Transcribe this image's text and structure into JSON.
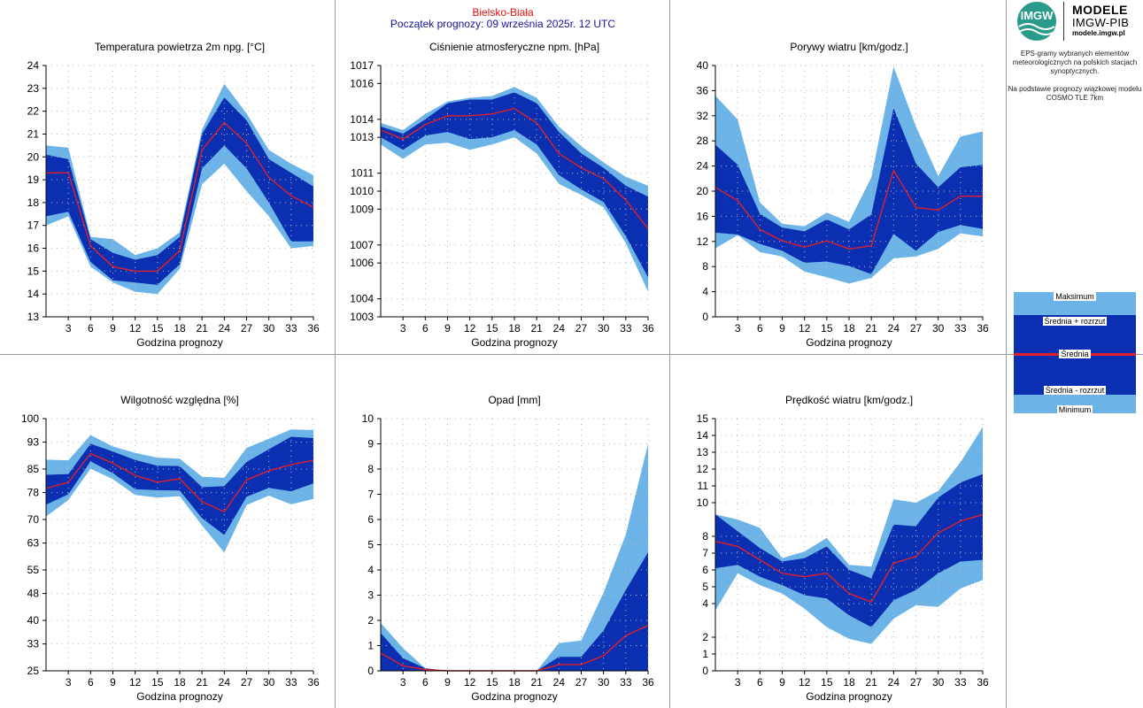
{
  "header": {
    "station": "Bielsko-Biała",
    "start": "Początek prognozy: 09 września 2025r. 12 UTC"
  },
  "logo": {
    "initials": "IMGW",
    "line1": "MODELE",
    "line2": "IMGW-PIB",
    "line3": "modele.imgw.pl"
  },
  "info": {
    "p1": "EPS-gramy wybranych elementów meteorologicznych na polskich stacjach synoptycznych.",
    "p2": "Na podstawie prognozy wiązkowej modelu COSMO TLE 7km"
  },
  "legend": {
    "max": "Maksimum",
    "mean_plus": "Średnia + rozrzut",
    "mean": "Średnia",
    "mean_minus": "Średnia - rozrzut",
    "min": "Minimum"
  },
  "colors": {
    "light": "#6cb4e8",
    "dark": "#0a2fb0",
    "mean": "#e0202a",
    "grid": "#b8b8b8"
  },
  "chart_data": [
    {
      "type": "area",
      "title": "Temperatura powietrza 2m npg. [°C]",
      "xlabel": "Godzina prognozy",
      "ylabel": "",
      "x": [
        0,
        3,
        6,
        9,
        12,
        15,
        18,
        21,
        24,
        27,
        30,
        33,
        36
      ],
      "xticks": [
        3,
        6,
        9,
        12,
        15,
        18,
        21,
        24,
        27,
        30,
        33,
        36
      ],
      "yticks": [
        "13",
        "14",
        "15",
        "16",
        "17",
        "18",
        "19",
        "20",
        "21",
        "22",
        "23",
        "24"
      ],
      "ylim": [
        13,
        24
      ],
      "series": [
        {
          "name": "Maksimum",
          "values": [
            20.5,
            20.4,
            16.5,
            16.4,
            15.7,
            16.0,
            16.7,
            21.2,
            23.2,
            21.9,
            20.3,
            19.7,
            19.2
          ]
        },
        {
          "name": "Średnia + rozrzut",
          "values": [
            20.1,
            19.9,
            16.4,
            15.8,
            15.5,
            15.7,
            16.5,
            21.0,
            22.6,
            21.6,
            19.9,
            19.3,
            18.7
          ]
        },
        {
          "name": "Średnia",
          "values": [
            19.3,
            19.3,
            16.1,
            15.2,
            15.0,
            15.0,
            15.9,
            20.3,
            21.5,
            20.6,
            19.1,
            18.3,
            17.8
          ]
        },
        {
          "name": "Średnia - rozrzut",
          "values": [
            17.4,
            17.6,
            15.4,
            14.6,
            14.5,
            14.4,
            15.3,
            19.5,
            20.5,
            19.5,
            18.0,
            16.3,
            16.3
          ]
        },
        {
          "name": "Minimum",
          "values": [
            17.0,
            17.4,
            15.2,
            14.5,
            14.1,
            14.0,
            15.1,
            18.8,
            19.7,
            18.5,
            17.4,
            16.0,
            16.1
          ]
        }
      ],
      "grid": true
    },
    {
      "type": "area",
      "title": "Ciśnienie atmosferyczne npm. [hPa]",
      "xlabel": "Godzina prognozy",
      "ylabel": "",
      "x": [
        0,
        3,
        6,
        9,
        12,
        15,
        18,
        21,
        24,
        27,
        30,
        33,
        36
      ],
      "xticks": [
        3,
        6,
        9,
        12,
        15,
        18,
        21,
        24,
        27,
        30,
        33,
        36
      ],
      "yticks": [
        "1003",
        "1004",
        "1006",
        "1007",
        "1009",
        "1010",
        "1011",
        "1013",
        "1014",
        "1016",
        "1017"
      ],
      "ylim": [
        1003,
        1017
      ],
      "series": [
        {
          "name": "Maksimum",
          "values": [
            1013.8,
            1013.4,
            1014.3,
            1015.0,
            1015.2,
            1015.3,
            1015.8,
            1015.2,
            1013.6,
            1012.5,
            1011.6,
            1010.8,
            1010.3
          ]
        },
        {
          "name": "Średnia + rozrzut",
          "values": [
            1013.6,
            1013.2,
            1014.0,
            1014.9,
            1015.1,
            1015.1,
            1015.5,
            1014.9,
            1013.3,
            1012.1,
            1011.3,
            1010.3,
            1009.7
          ]
        },
        {
          "name": "Średnia",
          "values": [
            1013.4,
            1012.9,
            1013.7,
            1014.2,
            1014.2,
            1014.3,
            1014.6,
            1013.8,
            1012.1,
            1011.3,
            1010.7,
            1009.5,
            1007.9
          ]
        },
        {
          "name": "Średnia - rozrzut",
          "values": [
            1013.0,
            1012.3,
            1013.1,
            1013.3,
            1012.9,
            1013.0,
            1013.4,
            1012.6,
            1010.9,
            1010.1,
            1009.4,
            1007.5,
            1005.2
          ]
        },
        {
          "name": "Minimum",
          "values": [
            1012.6,
            1011.8,
            1012.6,
            1012.7,
            1012.3,
            1012.6,
            1013.0,
            1012.1,
            1010.4,
            1009.8,
            1009.1,
            1007.1,
            1004.4
          ]
        }
      ],
      "grid": true
    },
    {
      "type": "area",
      "title": "Porywy wiatru [km/godz.]",
      "xlabel": "Godzina prognozy",
      "ylabel": "",
      "x": [
        0,
        3,
        6,
        9,
        12,
        15,
        18,
        21,
        24,
        27,
        30,
        33,
        36
      ],
      "xticks": [
        3,
        6,
        9,
        12,
        15,
        18,
        21,
        24,
        27,
        30,
        33,
        36
      ],
      "yticks": [
        "0",
        "4",
        "8",
        "12",
        "16",
        "20",
        "24",
        "28",
        "32",
        "36",
        "40"
      ],
      "ylim": [
        0,
        40
      ],
      "series": [
        {
          "name": "Maksimum",
          "values": [
            35.2,
            31.4,
            18.2,
            14.8,
            14.4,
            16.6,
            15.1,
            22.2,
            39.8,
            30.3,
            22.4,
            28.7,
            29.5
          ]
        },
        {
          "name": "Średnia + rozrzut",
          "values": [
            27.4,
            24.2,
            16.4,
            14.2,
            13.6,
            15.5,
            13.9,
            16.3,
            33.2,
            24.4,
            20.6,
            23.8,
            24.2
          ]
        },
        {
          "name": "Średnia",
          "values": [
            20.6,
            18.5,
            13.9,
            12.1,
            11.1,
            12.1,
            10.8,
            11.3,
            23.3,
            17.4,
            17.0,
            19.2,
            19.2
          ]
        },
        {
          "name": "Średnia - rozrzut",
          "values": [
            13.4,
            13.1,
            11.6,
            10.5,
            8.6,
            8.8,
            8.1,
            6.8,
            13.2,
            10.5,
            13.5,
            14.6,
            14.0
          ]
        },
        {
          "name": "Minimum",
          "values": [
            10.9,
            13.0,
            10.3,
            9.6,
            7.2,
            6.3,
            5.3,
            6.2,
            9.3,
            9.6,
            10.8,
            13.3,
            12.8
          ]
        }
      ],
      "grid": true
    },
    {
      "type": "area",
      "title": "Wilgotność względna [%]",
      "xlabel": "Godzina prognozy",
      "ylabel": "",
      "x": [
        0,
        3,
        6,
        9,
        12,
        15,
        18,
        21,
        24,
        27,
        30,
        33,
        36
      ],
      "xticks": [
        3,
        6,
        9,
        12,
        15,
        18,
        21,
        24,
        27,
        30,
        33,
        36
      ],
      "yticks": [
        "25",
        "33",
        "40",
        "48",
        "55",
        "63",
        "70",
        "78",
        "85",
        "93",
        "100"
      ],
      "ylim": [
        25,
        100
      ],
      "series": [
        {
          "name": "Maksimum",
          "values": [
            87.8,
            87.6,
            95.1,
            91.7,
            89.8,
            88.4,
            88.1,
            82.7,
            82.4,
            91.3,
            94.0,
            96.8,
            96.6
          ]
        },
        {
          "name": "Średnia + rozrzut",
          "values": [
            83.3,
            83.5,
            92.5,
            90.2,
            87.7,
            86.0,
            85.9,
            79.6,
            79.9,
            87.1,
            90.9,
            94.6,
            94.2
          ]
        },
        {
          "name": "Średnia",
          "values": [
            79.2,
            81.1,
            89.6,
            86.7,
            83.1,
            81.1,
            82.1,
            75.3,
            72.3,
            81.8,
            84.5,
            86.3,
            87.6
          ]
        },
        {
          "name": "Średnia - rozrzut",
          "values": [
            74.4,
            77.5,
            87.3,
            83.8,
            79.0,
            78.7,
            78.6,
            70.4,
            65.4,
            76.8,
            79.4,
            78.4,
            80.7
          ]
        },
        {
          "name": "Minimum",
          "values": [
            70.9,
            75.8,
            85.1,
            82.0,
            77.3,
            76.5,
            76.9,
            68.2,
            60.2,
            74.3,
            77.1,
            74.5,
            76.1
          ]
        }
      ],
      "grid": true
    },
    {
      "type": "area",
      "title": "Opad [mm]",
      "xlabel": "Godzina prognozy",
      "ylabel": "",
      "x": [
        0,
        3,
        6,
        9,
        12,
        15,
        18,
        21,
        24,
        27,
        30,
        33,
        36
      ],
      "xticks": [
        3,
        6,
        9,
        12,
        15,
        18,
        21,
        24,
        27,
        30,
        33,
        36
      ],
      "yticks": [
        "0",
        "1",
        "2",
        "3",
        "4",
        "5",
        "6",
        "7",
        "8",
        "9",
        "10"
      ],
      "ylim": [
        0,
        10
      ],
      "series": [
        {
          "name": "Maksimum",
          "values": [
            1.9,
            0.9,
            0.1,
            0,
            0,
            0,
            0,
            0,
            1.1,
            1.2,
            3.1,
            5.4,
            9.0
          ]
        },
        {
          "name": "Średnia + rozrzut",
          "values": [
            1.5,
            0.5,
            0.1,
            0,
            0,
            0,
            0,
            0,
            0.55,
            0.55,
            1.6,
            3.2,
            4.7
          ]
        },
        {
          "name": "Średnia",
          "values": [
            0.7,
            0.2,
            0.05,
            0,
            0,
            0,
            0,
            0,
            0.25,
            0.25,
            0.6,
            1.4,
            1.8
          ]
        },
        {
          "name": "Średnia - rozrzut",
          "values": [
            0,
            0,
            0,
            0,
            0,
            0,
            0,
            0,
            0,
            0,
            0,
            0,
            0
          ]
        },
        {
          "name": "Minimum",
          "values": [
            0,
            0,
            0,
            0,
            0,
            0,
            0,
            0,
            0,
            0,
            0,
            0,
            0
          ]
        }
      ],
      "grid": true
    },
    {
      "type": "area",
      "title": "Prędkość wiatru [km/godz.]",
      "xlabel": "Godzina prognozy",
      "ylabel": "",
      "x": [
        0,
        3,
        6,
        9,
        12,
        15,
        18,
        21,
        24,
        27,
        30,
        33,
        36
      ],
      "xticks": [
        3,
        6,
        9,
        12,
        15,
        18,
        21,
        24,
        27,
        30,
        33,
        36
      ],
      "yticks": [
        "0",
        "1",
        "2",
        "4",
        "5",
        "6",
        "7",
        "8",
        "10",
        "11",
        "12",
        "13",
        "14",
        "15"
      ],
      "ylim": [
        0,
        15
      ],
      "series": [
        {
          "name": "Maksimum",
          "values": [
            9.3,
            9.0,
            8.5,
            6.7,
            7.1,
            7.9,
            6.3,
            6.2,
            10.2,
            10.0,
            10.7,
            12.4,
            14.5
          ]
        },
        {
          "name": "Średnia + rozrzut",
          "values": [
            9.3,
            8.3,
            7.3,
            6.5,
            6.7,
            7.4,
            6.0,
            5.5,
            8.7,
            8.6,
            10.3,
            11.2,
            11.7
          ]
        },
        {
          "name": "Średnia",
          "values": [
            7.7,
            7.4,
            6.6,
            5.8,
            5.6,
            5.8,
            4.6,
            4.1,
            6.4,
            6.8,
            8.2,
            8.9,
            9.3
          ]
        },
        {
          "name": "Średnia - rozrzut",
          "values": [
            6.1,
            6.3,
            5.6,
            5.1,
            4.5,
            4.3,
            3.3,
            2.6,
            4.2,
            4.8,
            5.8,
            6.5,
            6.6
          ]
        },
        {
          "name": "Minimum",
          "values": [
            3.6,
            5.8,
            5.1,
            4.6,
            3.7,
            2.6,
            1.9,
            1.6,
            3.1,
            3.9,
            3.8,
            4.9,
            5.4
          ]
        }
      ],
      "grid": true
    }
  ]
}
